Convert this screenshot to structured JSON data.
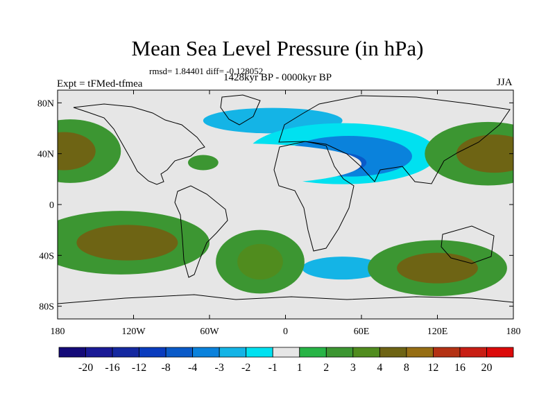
{
  "chart_data": {
    "type": "filled-contour-map",
    "title": "Mean Sea Level Pressure (in hPa)",
    "stats_text": "rmsd= 1.84401 diff= -0.128052",
    "period_text": "1428kyr BP - 0000kyr BP",
    "experiment_text": "Expt = tFMed-tfmea",
    "season_text": "JJA",
    "x_ticks": [
      "180",
      "120W",
      "60W",
      "0",
      "60E",
      "120E",
      "180"
    ],
    "y_ticks": [
      "80N",
      "40N",
      "0",
      "40S",
      "80S"
    ],
    "lon_range": [
      -180,
      180
    ],
    "lat_range": [
      -90,
      90
    ],
    "colorbar": {
      "levels": [
        "-20",
        "-16",
        "-12",
        "-8",
        "-4",
        "-3",
        "-2",
        "-1",
        "1",
        "2",
        "3",
        "4",
        "8",
        "12",
        "16",
        "20"
      ],
      "colors": [
        "#140a78",
        "#1a1a96",
        "#1428a0",
        "#0a3cbe",
        "#0a5ac8",
        "#0a82dc",
        "#14b4e6",
        "#00e1f0",
        "#e6e6e6",
        "#28b446",
        "#3c9632",
        "#508c1e",
        "#6e6414",
        "#966e14",
        "#b43214",
        "#c81e14",
        "#dc0a0a"
      ]
    },
    "regions": [
      {
        "lon": 0,
        "lat": 76,
        "rx": 180,
        "ry": 12,
        "value": -1
      },
      {
        "lon": -10,
        "lat": 66,
        "rx": 55,
        "ry": 10,
        "value": -3
      },
      {
        "lon": 45,
        "lat": 40,
        "rx": 75,
        "ry": 24,
        "value": -2
      },
      {
        "lon": 50,
        "lat": 38,
        "rx": 50,
        "ry": 16,
        "value": -4
      },
      {
        "lon": 40,
        "lat": 33,
        "rx": 24,
        "ry": 8,
        "value": -8
      },
      {
        "lon": -35,
        "lat": 32,
        "rx": 95,
        "ry": 16,
        "value": -1
      },
      {
        "lon": -75,
        "lat": 7,
        "rx": 32,
        "ry": 12,
        "value": -1
      },
      {
        "lon": -60,
        "lat": -17,
        "rx": 18,
        "ry": 16,
        "value": -1
      },
      {
        "lon": 30,
        "lat": -20,
        "rx": 12,
        "ry": 20,
        "value": -1
      },
      {
        "lon": 45,
        "lat": -47,
        "rx": 45,
        "ry": 14,
        "value": -1
      },
      {
        "lon": 45,
        "lat": -50,
        "rx": 32,
        "ry": 9,
        "value": -3
      },
      {
        "lon": -90,
        "lat": -62,
        "rx": 45,
        "ry": 8,
        "value": -1
      },
      {
        "lon": -170,
        "lat": 42,
        "rx": 40,
        "ry": 25,
        "value": 2
      },
      {
        "lon": -175,
        "lat": 42,
        "rx": 25,
        "ry": 15,
        "value": 4
      },
      {
        "lon": 160,
        "lat": 40,
        "rx": 50,
        "ry": 25,
        "value": 2
      },
      {
        "lon": 165,
        "lat": 40,
        "rx": 30,
        "ry": 15,
        "value": 4
      },
      {
        "lon": -65,
        "lat": 33,
        "rx": 12,
        "ry": 6,
        "value": 2
      },
      {
        "lon": -130,
        "lat": -30,
        "rx": 70,
        "ry": 25,
        "value": 2
      },
      {
        "lon": -125,
        "lat": -30,
        "rx": 40,
        "ry": 14,
        "value": 4
      },
      {
        "lon": -20,
        "lat": -45,
        "rx": 35,
        "ry": 25,
        "value": 2
      },
      {
        "lon": -20,
        "lat": -45,
        "rx": 18,
        "ry": 14,
        "value": 3
      },
      {
        "lon": 120,
        "lat": -50,
        "rx": 55,
        "ry": 22,
        "value": 2
      },
      {
        "lon": 120,
        "lat": -50,
        "rx": 32,
        "ry": 12,
        "value": 4
      }
    ]
  }
}
